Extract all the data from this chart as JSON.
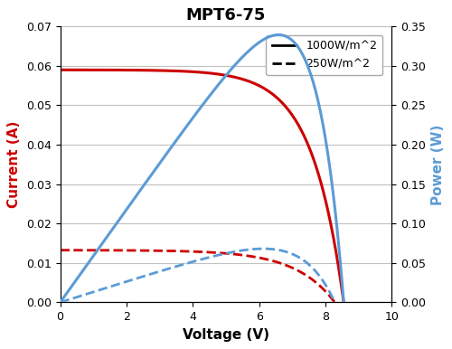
{
  "title": "MPT6-75",
  "xlabel": "Voltage (V)",
  "ylabel_left": "Current (A)",
  "ylabel_right": "Power (W)",
  "xlim": [
    0,
    10
  ],
  "ylim_left": [
    0,
    0.07
  ],
  "ylim_right": [
    0,
    0.35
  ],
  "legend_labels": [
    "1000W/m^2",
    "250W/m^2"
  ],
  "color_red": "#cc0000",
  "color_blue": "#5b9bd5",
  "color_grid": "#c0c0c0",
  "bg_color": "#ffffff",
  "iv_full": {
    "Isc": 0.059,
    "Voc": 8.55,
    "k": 9.0
  },
  "iv_quarter": {
    "Isc": 0.01325,
    "Voc": 8.28,
    "k": 7.0
  },
  "title_fontsize": 13,
  "label_fontsize": 11,
  "tick_fontsize": 9,
  "legend_fontsize": 9,
  "lw_solid": 2.2,
  "lw_dashed": 2.0
}
